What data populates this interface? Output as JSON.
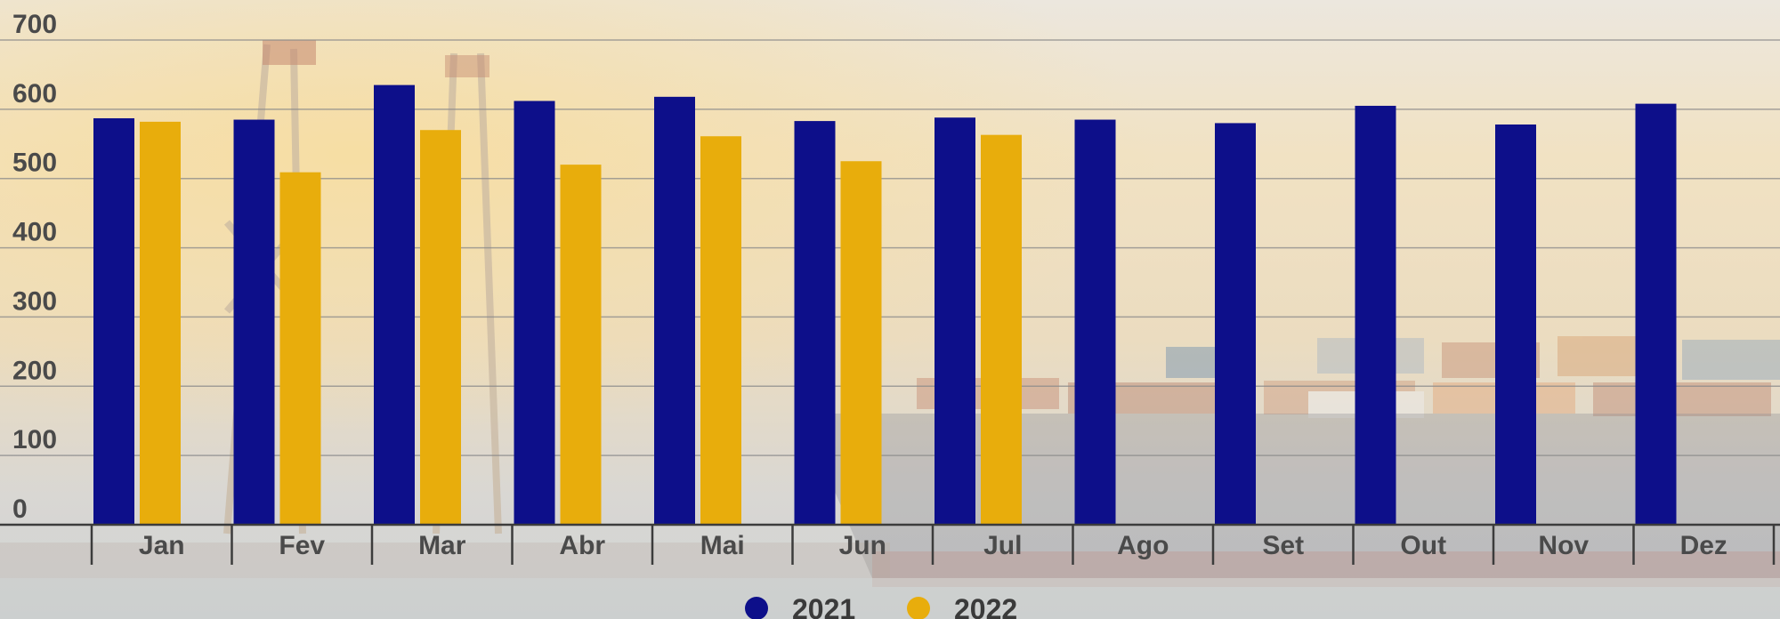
{
  "chart_data": {
    "type": "bar",
    "categories": [
      "Jan",
      "Fev",
      "Mar",
      "Abr",
      "Mai",
      "Jun",
      "Jul",
      "Ago",
      "Set",
      "Out",
      "Nov",
      "Dez"
    ],
    "series": [
      {
        "name": "2021",
        "color": "#0d0f8a",
        "values": [
          587,
          585,
          635,
          612,
          618,
          583,
          588,
          585,
          580,
          605,
          578,
          608
        ]
      },
      {
        "name": "2022",
        "color": "#e8ad0c",
        "values": [
          582,
          509,
          570,
          520,
          561,
          525,
          563,
          null,
          null,
          null,
          null,
          null
        ]
      }
    ],
    "y_ticks": [
      "0",
      "100",
      "200",
      "300",
      "400",
      "500",
      "600",
      "700"
    ],
    "ylim": [
      0,
      700
    ],
    "grid": true,
    "legend_position": "bottom-center",
    "title": "",
    "xlabel": "",
    "ylabel": ""
  }
}
